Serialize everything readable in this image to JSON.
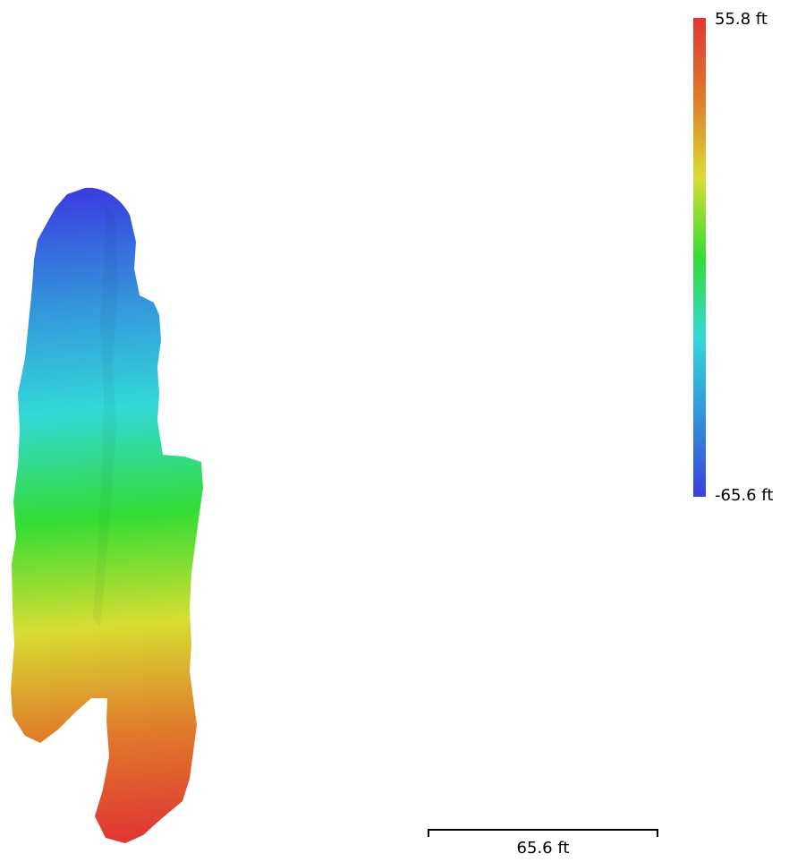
{
  "legend": {
    "max_label": "55.8 ft",
    "min_label": "-65.6 ft",
    "max_value": 55.8,
    "min_value": -65.6,
    "unit": "ft",
    "colors": [
      "#3a3fe0",
      "#3393dc",
      "#33d8d8",
      "#33dd33",
      "#d8dd33",
      "#e07a2a",
      "#e03535"
    ]
  },
  "scale_bar": {
    "label": "65.6 ft"
  },
  "map": {
    "colormap": [
      "#3a3fe0",
      "#3393dc",
      "#33d8d8",
      "#33dd33",
      "#d8dd33",
      "#e07a2a",
      "#e03535"
    ]
  }
}
